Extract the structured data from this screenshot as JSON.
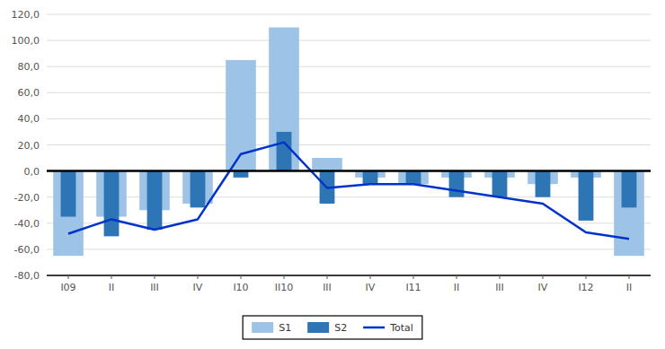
{
  "chart_data": {
    "type": "bar",
    "categories": [
      "I09",
      "II",
      "III",
      "IV",
      "I10",
      "II10",
      "III",
      "IV",
      "I11",
      "II",
      "III",
      "IV",
      "I12",
      "II"
    ],
    "series": [
      {
        "name": "S1",
        "type": "bar",
        "color": "#9dc3e6",
        "values": [
          -65,
          -35,
          -30,
          -25,
          85,
          110,
          10,
          -5,
          -10,
          -5,
          -5,
          -10,
          -5,
          -65
        ]
      },
      {
        "name": "S2",
        "type": "bar",
        "color": "#2e75b6",
        "values": [
          -35,
          -50,
          -45,
          -28,
          -5,
          30,
          -25,
          -10,
          -10,
          -20,
          -20,
          -20,
          -38,
          -28
        ]
      },
      {
        "name": "Total",
        "type": "line",
        "color": "#0033cc",
        "values": [
          -48,
          -37,
          -45,
          -37,
          13,
          22,
          -13,
          -10,
          -10,
          -15,
          -20,
          -25,
          -47,
          -52
        ]
      }
    ],
    "ylim": [
      -80,
      120
    ],
    "yticks": [
      {
        "value": -80,
        "label": "-80,0"
      },
      {
        "value": -60,
        "label": "-60,0"
      },
      {
        "value": -40,
        "label": "-40,0"
      },
      {
        "value": -20,
        "label": "-20,0"
      },
      {
        "value": 0,
        "label": "0,0"
      },
      {
        "value": 20,
        "label": "20,0"
      },
      {
        "value": 40,
        "label": "40,0"
      },
      {
        "value": 60,
        "label": "60,0"
      },
      {
        "value": 80,
        "label": "80,0"
      },
      {
        "value": 100,
        "label": "100,0"
      },
      {
        "value": 120,
        "label": "120,0"
      }
    ],
    "grid": true,
    "legend": "bottom"
  }
}
